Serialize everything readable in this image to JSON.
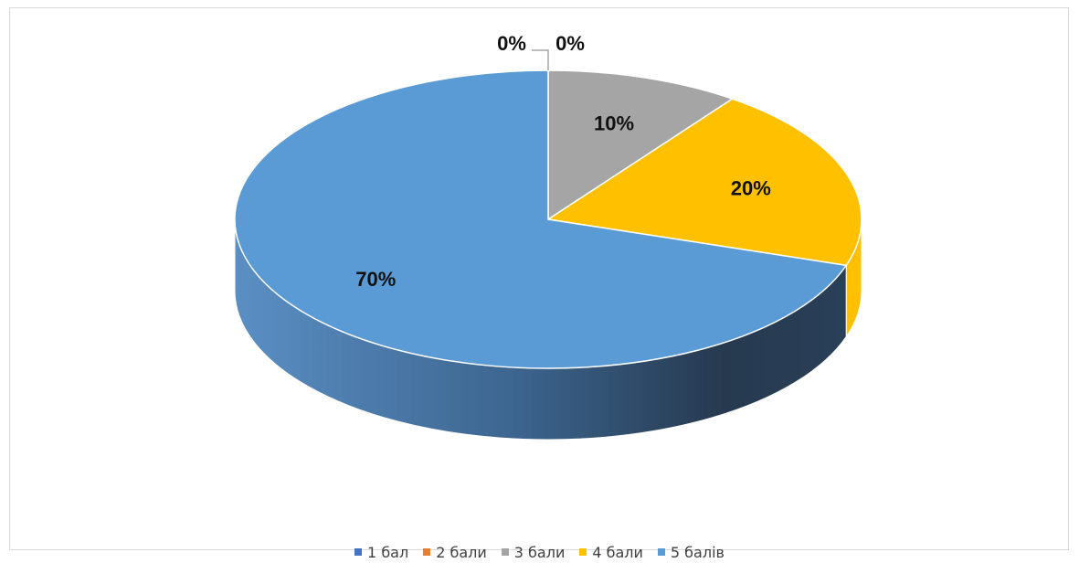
{
  "chart_data": {
    "type": "pie",
    "style": "3d",
    "categories": [
      "1 бал",
      "2 бали",
      "3 бали",
      "4 бали",
      "5 балів"
    ],
    "values": [
      0,
      0,
      10,
      20,
      70
    ],
    "data_labels": [
      "0%",
      "0%",
      "10%",
      "20%",
      "70%"
    ],
    "colors": [
      "#4472c4",
      "#ed7d31",
      "#a5a5a5",
      "#ffc000",
      "#5b9bd5"
    ],
    "legend_position": "bottom"
  }
}
